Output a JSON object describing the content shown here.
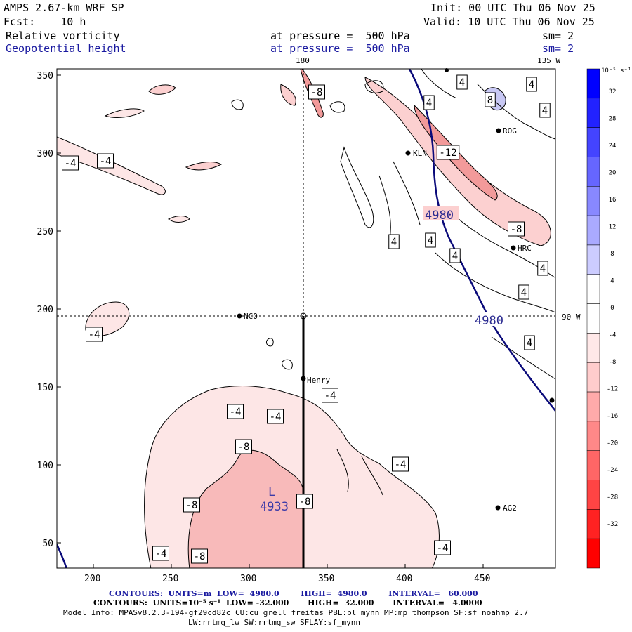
{
  "header": {
    "model": "AMPS 2.67-km WRF SP",
    "fcst": "Fcst:    10 h",
    "init": "Init: 00 UTC Thu 06 Nov 25",
    "valid": "Valid: 10 UTC Thu 06 Nov 25",
    "field1": "Relative vorticity",
    "field2": "Geopotential height",
    "pressure1": "at pressure =  500 hPa",
    "pressure2": "at pressure =  500 hPa",
    "sm1": "sm= 2",
    "sm2": "sm= 2"
  },
  "map": {
    "x_ticks": [
      "200",
      "250",
      "300",
      "350",
      "400",
      "450"
    ],
    "y_ticks": [
      "350",
      "300",
      "250",
      "200",
      "150",
      "100",
      "50"
    ],
    "lon_180": "180",
    "lon_135": "135 W",
    "lat_90": "90 W",
    "stations": [
      {
        "name": "ROG",
        "x": 462,
        "y": 314
      },
      {
        "name": "KLN",
        "x": 401,
        "y": 300
      },
      {
        "name": "HRC",
        "x": 468,
        "y": 240
      },
      {
        "name": "NCO",
        "x": 293,
        "y": 195
      },
      {
        "name": "Henry",
        "x": 334,
        "y": 155
      },
      {
        "name": "AG2",
        "x": 459,
        "y": 72
      }
    ],
    "low_center": {
      "symbol": "L",
      "value": "4933"
    },
    "height_labels": [
      "4980",
      "4980"
    ],
    "vort_labels": [
      "-4",
      "-4",
      "-4",
      "-4",
      "-4",
      "-4",
      "-4",
      "-4",
      "-4",
      "-8",
      "-8",
      "-8",
      "-8",
      "-8",
      "-8",
      "-12",
      "4",
      "4",
      "4",
      "4",
      "4",
      "4",
      "4",
      "4",
      "4",
      "4",
      "8"
    ]
  },
  "colorbar": {
    "unit": "10⁻⁵ s⁻¹",
    "levels": [
      "32",
      "28",
      "24",
      "20",
      "16",
      "12",
      "8",
      "4",
      "0",
      "-4",
      "-8",
      "-12",
      "-16",
      "-20",
      "-24",
      "-28",
      "-32"
    ],
    "colors": [
      "#0000ff",
      "#2222ff",
      "#4444ff",
      "#6666ff",
      "#8888ff",
      "#aaaaff",
      "#ccccff",
      "#ffffff",
      "#ffffff",
      "#ffe8e8",
      "#ffcccc",
      "#ffaaaa",
      "#ff8888",
      "#ff6666",
      "#ff4444",
      "#ff2222",
      "#ff0000"
    ]
  },
  "footer": {
    "line1": "CONTOURS:  UNITS=m  LOW=  4980.0        HIGH=  4980.0        INTERVAL=   60.000",
    "line2": "CONTOURS:  UNITS=10⁻⁵ s⁻¹  LOW= -32.000       HIGH=  32.000       INTERVAL=   4.0000",
    "line3": "Model Info: MPASv8.2.3-194-gf29cd82c CU:cu_grell_freitas PBL:bl_mynn MP:mp_thompson SF:sf_noahmp 2.7",
    "line4": "LW:rrtmg_lw SW:rrtmg_sw SFLAY:sf_mynn"
  }
}
